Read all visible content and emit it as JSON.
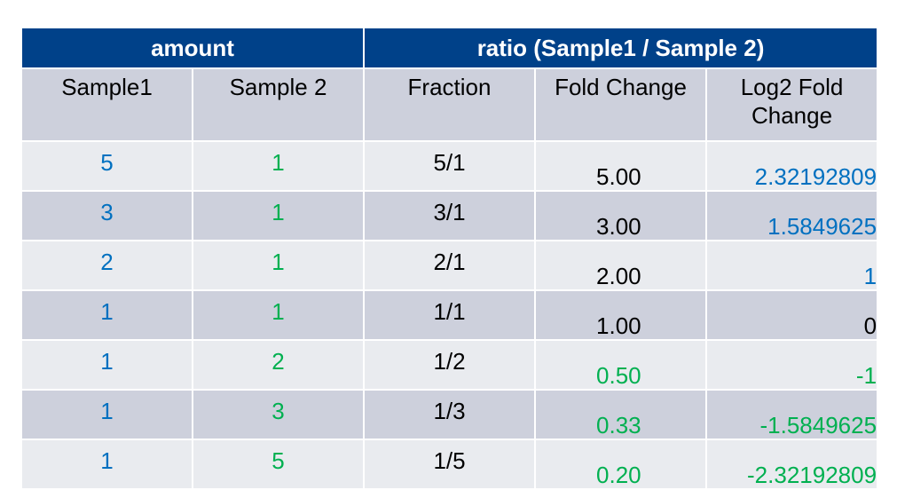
{
  "header": {
    "group_amount": "amount",
    "group_ratio": "ratio (Sample1 / Sample 2)",
    "col_sample1": "Sample1",
    "col_sample2": "Sample 2",
    "col_fraction": "Fraction",
    "col_fold_change": "Fold Change",
    "col_log2_line1": "Log2 Fold",
    "col_log2_line2": "Change"
  },
  "colors": {
    "header_bg": "#004189",
    "row_light": "#e9ebef",
    "row_dark": "#cdd0dc",
    "blue": "#0070c0",
    "green": "#00b050"
  },
  "rows": [
    {
      "sample1": "5",
      "sample2": "1",
      "fraction": "5/1",
      "fold_change": "5.00",
      "log2": "2.32192809"
    },
    {
      "sample1": "3",
      "sample2": "1",
      "fraction": "3/1",
      "fold_change": "3.00",
      "log2": "1.5849625"
    },
    {
      "sample1": "2",
      "sample2": "1",
      "fraction": "2/1",
      "fold_change": "2.00",
      "log2": "1"
    },
    {
      "sample1": "1",
      "sample2": "1",
      "fraction": "1/1",
      "fold_change": "1.00",
      "log2": "0"
    },
    {
      "sample1": "1",
      "sample2": "2",
      "fraction": "1/2",
      "fold_change": "0.50",
      "log2": "-1"
    },
    {
      "sample1": "1",
      "sample2": "3",
      "fraction": "1/3",
      "fold_change": "0.33",
      "log2": "-1.5849625"
    },
    {
      "sample1": "1",
      "sample2": "5",
      "fraction": "1/5",
      "fold_change": "0.20",
      "log2": "-2.32192809"
    }
  ]
}
